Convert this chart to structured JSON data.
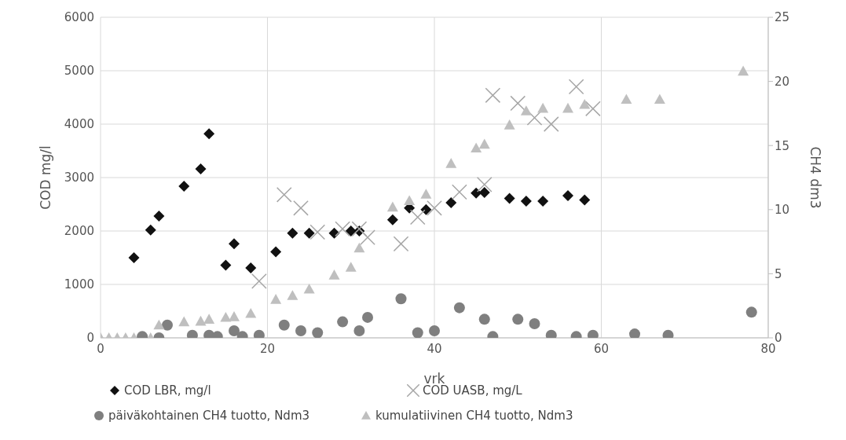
{
  "chart_data": {
    "type": "scatter",
    "xlabel": "vrk",
    "ylabel": "COD mg/l",
    "y2label": "CH4 dm3",
    "xlim": [
      0,
      80
    ],
    "xticks": [
      0,
      20,
      40,
      60,
      80
    ],
    "ylim": [
      0,
      6000
    ],
    "yticks": [
      0,
      1000,
      2000,
      3000,
      4000,
      5000,
      6000
    ],
    "y2lim": [
      0,
      25
    ],
    "y2ticks": [
      0,
      5,
      10,
      15,
      20,
      25
    ],
    "grid": true,
    "legend": "bottom",
    "series": [
      {
        "name": "COD LBR, mg/l",
        "color": "#111111",
        "marker": "diamond",
        "x": [
          4,
          6,
          7,
          10,
          12,
          13,
          15,
          16,
          18,
          21,
          23,
          25,
          28,
          30,
          31,
          35,
          37,
          39,
          42,
          45,
          46,
          49,
          51,
          53,
          56,
          58
        ],
        "values": [
          1500,
          2020,
          2280,
          2840,
          3160,
          3820,
          1360,
          1760,
          1310,
          1610,
          1960,
          1960,
          1960,
          2000,
          2000,
          2210,
          2430,
          2400,
          2530,
          2710,
          2720,
          2610,
          2560,
          2560,
          2660,
          2580
        ]
      },
      {
        "name": "COD UASB, mg/L",
        "color": "#a6a6a6",
        "marker": "cross",
        "x": [
          19,
          22,
          24,
          26,
          29,
          31,
          32,
          36,
          38,
          40,
          43,
          46,
          47,
          50,
          52,
          54,
          57,
          59
        ],
        "values": [
          1060,
          2680,
          2430,
          1980,
          2040,
          2040,
          1880,
          1760,
          2260,
          2430,
          2730,
          2870,
          4540,
          4390,
          4120,
          4000,
          4700,
          4290
        ]
      },
      {
        "name": "päiväkohtainen CH4 tuotto, Ndm3",
        "color": "#7f7f7f",
        "marker": "circle",
        "axis": "y2",
        "x": [
          5,
          7,
          8,
          11,
          13,
          14,
          16,
          17,
          19,
          22,
          24,
          26,
          29,
          31,
          32,
          36,
          38,
          40,
          43,
          46,
          47,
          50,
          52,
          54,
          57,
          59,
          64,
          68,
          78
        ],
        "values": [
          0.1,
          0,
          1,
          0.2,
          0.2,
          0.1,
          0.55,
          0.1,
          0.2,
          1,
          0.55,
          0.4,
          1.25,
          0.55,
          1.6,
          3.05,
          0.4,
          0.55,
          2.35,
          1.45,
          0.1,
          1.45,
          1.1,
          0.2,
          0.1,
          0.2,
          0.3,
          0.2,
          2
        ]
      },
      {
        "name": "kumulatiivinen CH4 tuotto, Ndm3",
        "color": "#bfbfbf",
        "marker": "triangle",
        "axis": "y2",
        "x": [
          0,
          1,
          2,
          3,
          4,
          6,
          7,
          10,
          12,
          13,
          15,
          16,
          18,
          21,
          23,
          25,
          28,
          30,
          31,
          35,
          37,
          39,
          42,
          45,
          46,
          49,
          51,
          53,
          56,
          58,
          63,
          67,
          77
        ],
        "values": [
          0,
          0,
          0,
          0,
          0,
          0,
          1,
          1.25,
          1.3,
          1.45,
          1.6,
          1.65,
          1.9,
          3,
          3.3,
          3.8,
          4.9,
          5.5,
          7,
          10.2,
          10.7,
          11.2,
          13.6,
          14.8,
          15.1,
          16.6,
          17.7,
          17.9,
          17.9,
          18.2,
          18.6,
          18.6,
          20.8
        ]
      }
    ]
  }
}
